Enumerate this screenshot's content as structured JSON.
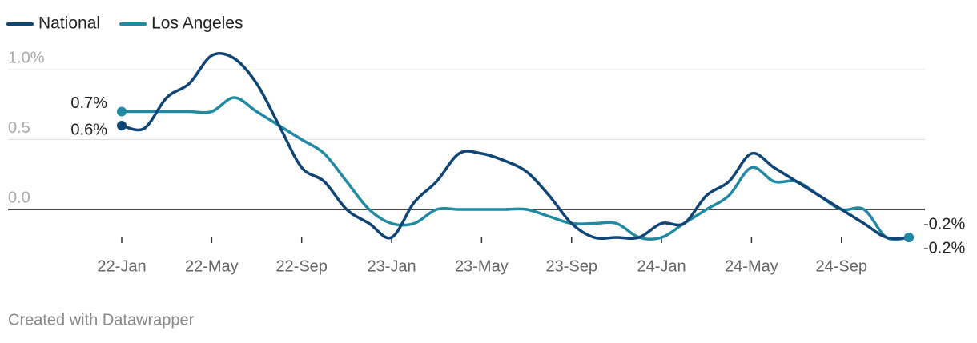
{
  "chart_data": {
    "type": "line",
    "categories": [
      "22-Jan",
      null,
      null,
      null,
      "22-May",
      null,
      null,
      null,
      "22-Sep",
      null,
      null,
      null,
      "23-Jan",
      null,
      null,
      null,
      "23-May",
      null,
      null,
      null,
      "23-Sep",
      null,
      null,
      null,
      "24-Jan",
      null,
      null,
      null,
      "24-May",
      null,
      null,
      null,
      "24-Sep",
      null,
      null,
      null
    ],
    "series": [
      {
        "name": "National",
        "color": "#0f4477",
        "values": [
          0.6,
          0.58,
          0.8,
          0.9,
          1.1,
          1.08,
          0.9,
          0.6,
          0.3,
          0.2,
          0.0,
          -0.1,
          -0.2,
          0.05,
          0.2,
          0.4,
          0.4,
          0.35,
          0.27,
          0.1,
          -0.1,
          -0.2,
          -0.2,
          -0.2,
          -0.1,
          -0.1,
          0.1,
          0.2,
          0.4,
          0.3,
          0.2,
          0.1,
          0.0,
          -0.1,
          -0.2,
          -0.2
        ],
        "value_labels": [
          "0.6%",
          null,
          null,
          null,
          null,
          null,
          null,
          null,
          null,
          null,
          null,
          null,
          null,
          null,
          null,
          null,
          null,
          null,
          null,
          null,
          null,
          null,
          null,
          null,
          null,
          null,
          null,
          null,
          null,
          null,
          null,
          null,
          null,
          null,
          null,
          "-0.2%"
        ]
      },
      {
        "name": "Los Angeles",
        "color": "#2089a3",
        "values": [
          0.7,
          0.7,
          0.7,
          0.7,
          0.7,
          0.8,
          0.7,
          0.6,
          0.5,
          0.4,
          0.2,
          0.0,
          -0.1,
          -0.1,
          0.0,
          0.0,
          0.0,
          0.0,
          0.0,
          -0.05,
          -0.1,
          -0.1,
          -0.1,
          -0.2,
          -0.2,
          -0.1,
          0.0,
          0.1,
          0.3,
          0.2,
          0.2,
          0.1,
          0.0,
          0.0,
          -0.2,
          -0.2
        ],
        "value_labels": [
          "0.7%",
          null,
          null,
          null,
          null,
          null,
          null,
          null,
          null,
          null,
          null,
          null,
          null,
          null,
          null,
          null,
          null,
          null,
          null,
          null,
          null,
          null,
          null,
          null,
          null,
          null,
          null,
          null,
          null,
          null,
          null,
          null,
          null,
          null,
          null,
          "-0.2%"
        ]
      }
    ],
    "ylim": [
      -0.25,
      1.15
    ],
    "yticks": [
      {
        "value": 1.0,
        "label": "1.0%"
      },
      {
        "value": 0.5,
        "label": "0.5"
      },
      {
        "value": 0,
        "label": "0.0"
      }
    ],
    "grid": true,
    "credit": "Created with Datawrapper"
  }
}
